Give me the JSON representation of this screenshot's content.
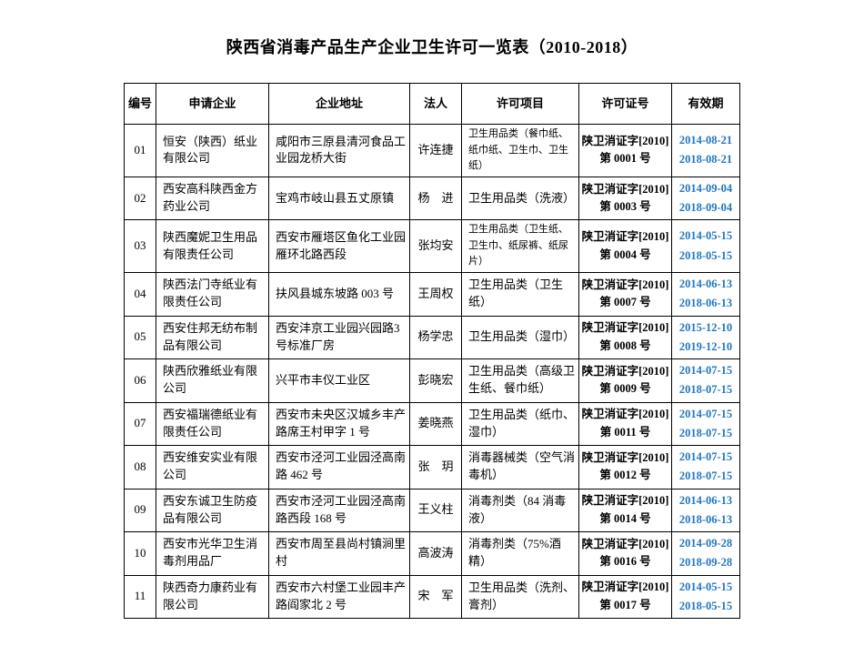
{
  "page": {
    "title": "陕西省消毒产品生产企业卫生许可一览表（2010-2018）"
  },
  "colors": {
    "date_blue": "#2277c0",
    "border": "#000000",
    "background": "#ffffff"
  },
  "table": {
    "headers": {
      "no": "编号",
      "company": "申请企业",
      "address": "企业地址",
      "legal_person": "法人",
      "permit_items": "许可项目",
      "license_no": "许可证号",
      "validity": "有效期"
    },
    "rows": [
      {
        "no": "01",
        "company": "恒安（陕西）纸业有限公司",
        "address": "咸阳市三原县清河食品工业园龙桥大街",
        "legal_person": "许连捷",
        "permit_items": "卫生用品类（餐巾纸、纸巾纸、卫生巾、卫生纸）",
        "license_line1": "陕卫消证字[2010]",
        "license_line2": "第 0001 号",
        "valid_from": "2014-08-21",
        "valid_to": "2018-08-21"
      },
      {
        "no": "02",
        "company": "西安高科陕西金方药业公司",
        "address": "宝鸡市岐山县五丈原镇",
        "legal_person": "杨　进",
        "permit_items": "卫生用品类（洗液）",
        "license_line1": "陕卫消证字[2010]",
        "license_line2": "第 0003 号",
        "valid_from": "2014-09-04",
        "valid_to": "2018-09-04"
      },
      {
        "no": "03",
        "company": "陕西魔妮卫生用品有限责任公司",
        "address": "西安市雁塔区鱼化工业园雁环北路西段",
        "legal_person": "张均安",
        "permit_items": "卫生用品类（卫生纸、卫生巾、纸尿裤、纸尿片）",
        "license_line1": "陕卫消证字[2010]",
        "license_line2": "第 0004 号",
        "valid_from": "2014-05-15",
        "valid_to": "2018-05-15"
      },
      {
        "no": "04",
        "company": "陕西法门寺纸业有限责任公司",
        "address": "扶风县城东坡路 003 号",
        "legal_person": "王周权",
        "permit_items": "卫生用品类（卫生纸）",
        "license_line1": "陕卫消证字[2010]",
        "license_line2": "第 0007 号",
        "valid_from": "2014-06-13",
        "valid_to": "2018-06-13"
      },
      {
        "no": "05",
        "company": "西安住邦无纺布制品有限公司",
        "address": "西安沣京工业园兴园路3号标准厂房",
        "legal_person": "杨学忠",
        "permit_items": "卫生用品类（湿巾）",
        "license_line1": "陕卫消证字[2010]",
        "license_line2": "第 0008 号",
        "valid_from": "2015-12-10",
        "valid_to": "2019-12-10"
      },
      {
        "no": "06",
        "company": "陕西欣雅纸业有限公司",
        "address": "兴平市丰仪工业区",
        "legal_person": "彭晓宏",
        "permit_items": "卫生用品类（高级卫生纸、餐巾纸）",
        "license_line1": "陕卫消证字[2010]",
        "license_line2": "第 0009 号",
        "valid_from": "2014-07-15",
        "valid_to": "2018-07-15"
      },
      {
        "no": "07",
        "company": "西安福瑞德纸业有限责任公司",
        "address": "西安市未央区汉城乡丰产路席王村甲字 1 号",
        "legal_person": "姜晓燕",
        "permit_items": "卫生用品类（纸巾、湿巾）",
        "license_line1": "陕卫消证字[2010]",
        "license_line2": "第 0011 号",
        "valid_from": "2014-07-15",
        "valid_to": "2018-07-15"
      },
      {
        "no": "08",
        "company": "西安维安实业有限公司",
        "address": "西安市泾河工业园泾高南路 462 号",
        "legal_person": "张　玥",
        "permit_items": "消毒器械类（空气消毒机）",
        "license_line1": "陕卫消证字[2010]",
        "license_line2": "第 0012 号",
        "valid_from": "2014-07-15",
        "valid_to": "2018-07-15"
      },
      {
        "no": "09",
        "company": "西安东诚卫生防疫品有限公司",
        "address": "西安市泾河工业园泾高南路西段 168 号",
        "legal_person": "王义柱",
        "permit_items": "消毒剂类（84 消毒液）",
        "license_line1": "陕卫消证字[2010]",
        "license_line2": "第 0014 号",
        "valid_from": "2014-06-13",
        "valid_to": "2018-06-13"
      },
      {
        "no": "10",
        "company": "西安市光华卫生消毒剂用品厂",
        "address": "西安市周至县尚村镇涧里村",
        "legal_person": "高波涛",
        "permit_items": "消毒剂类（75%酒精）",
        "license_line1": "陕卫消证字[2010]",
        "license_line2": "第 0016 号",
        "valid_from": "2014-09-28",
        "valid_to": "2018-09-28"
      },
      {
        "no": "11",
        "company": "陕西奇力康药业有限公司",
        "address": "西安市六村堡工业园丰产路阎家北 2 号",
        "legal_person": "宋　军",
        "permit_items": "卫生用品类（洗剂、膏剂）",
        "license_line1": "陕卫消证字[2010]",
        "license_line2": "第 0017 号",
        "valid_from": "2014-05-15",
        "valid_to": "2018-05-15"
      }
    ]
  }
}
